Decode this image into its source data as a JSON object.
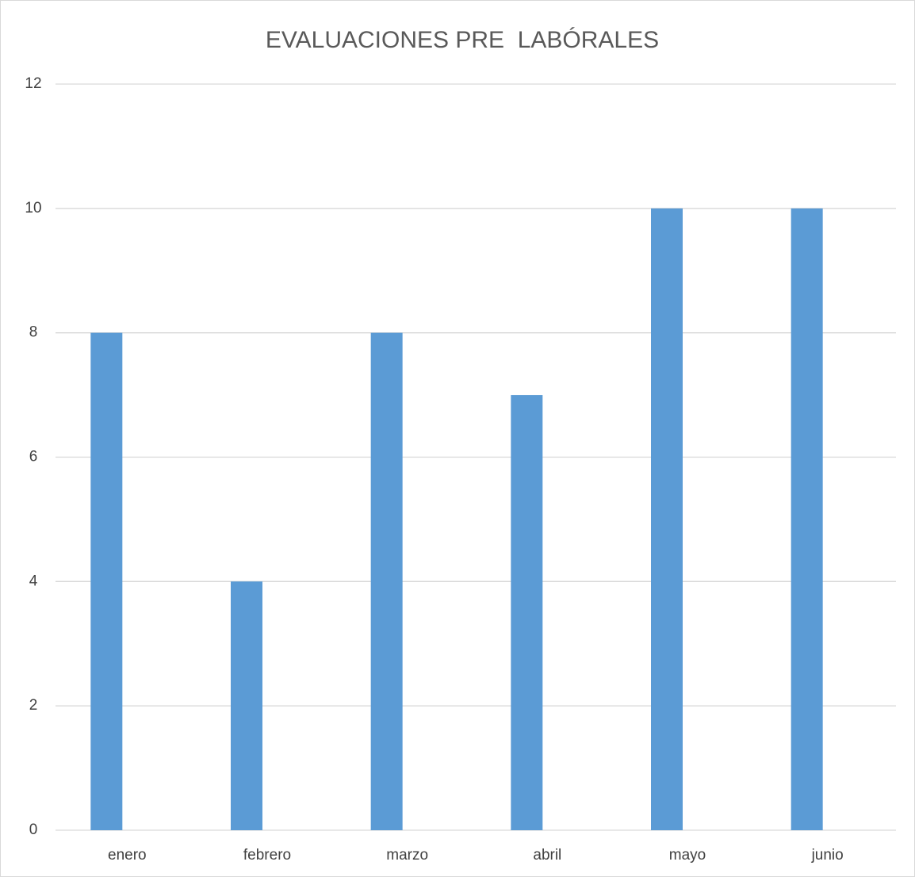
{
  "chart_data": {
    "type": "bar",
    "title": "EVALUACIONES PRE  LABÓRALES",
    "categories": [
      "enero",
      "febrero",
      "marzo",
      "abril",
      "mayo",
      "junio"
    ],
    "values": [
      8,
      4,
      8,
      7,
      10,
      10
    ],
    "color": "#5b9bd5",
    "ylim": [
      0,
      12
    ],
    "yticks": [
      0,
      2,
      4,
      6,
      8,
      10,
      12
    ],
    "grid": true
  }
}
